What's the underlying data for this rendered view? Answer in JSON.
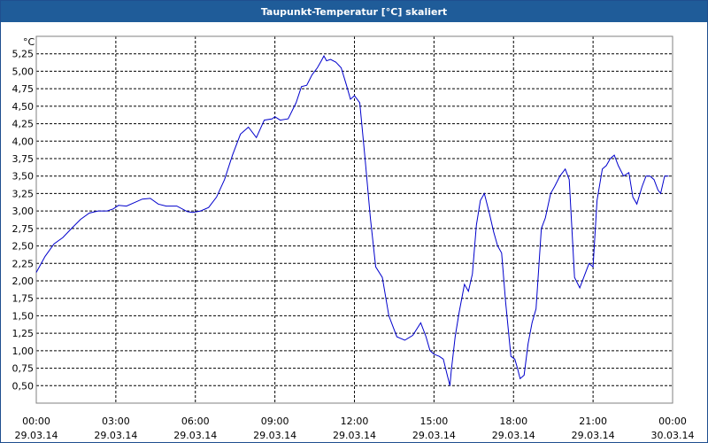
{
  "window": {
    "title": "Taupunkt-Temperatur [°C] skaliert"
  },
  "chart_data": {
    "type": "line",
    "title": "Taupunkt-Temperatur [°C] skaliert",
    "ylabel": "°C",
    "xlabel": "",
    "ylim": [
      0.25,
      5.5
    ],
    "xlim": [
      0,
      24
    ],
    "grid": true,
    "line_color": "#0000cc",
    "y_ticks": [
      {
        "value": 0.5,
        "label": "0,50"
      },
      {
        "value": 0.75,
        "label": "0,75"
      },
      {
        "value": 1.0,
        "label": "1,00"
      },
      {
        "value": 1.25,
        "label": "1,25"
      },
      {
        "value": 1.5,
        "label": "1,50"
      },
      {
        "value": 1.75,
        "label": "1,75"
      },
      {
        "value": 2.0,
        "label": "2,00"
      },
      {
        "value": 2.25,
        "label": "2,25"
      },
      {
        "value": 2.5,
        "label": "2,50"
      },
      {
        "value": 2.75,
        "label": "2,75"
      },
      {
        "value": 3.0,
        "label": "3,00"
      },
      {
        "value": 3.25,
        "label": "3,25"
      },
      {
        "value": 3.5,
        "label": "3,50"
      },
      {
        "value": 3.75,
        "label": "3,75"
      },
      {
        "value": 4.0,
        "label": "4,00"
      },
      {
        "value": 4.25,
        "label": "4,25"
      },
      {
        "value": 4.5,
        "label": "4,50"
      },
      {
        "value": 4.75,
        "label": "4,75"
      },
      {
        "value": 5.0,
        "label": "5,00"
      },
      {
        "value": 5.25,
        "label": "5,25"
      }
    ],
    "x_ticks": [
      {
        "value": 0,
        "time": "00:00",
        "date": "29.03.14"
      },
      {
        "value": 3,
        "time": "03:00",
        "date": "29.03.14"
      },
      {
        "value": 6,
        "time": "06:00",
        "date": "29.03.14"
      },
      {
        "value": 9,
        "time": "09:00",
        "date": "29.03.14"
      },
      {
        "value": 12,
        "time": "12:00",
        "date": "29.03.14"
      },
      {
        "value": 15,
        "time": "15:00",
        "date": "29.03.14"
      },
      {
        "value": 18,
        "time": "18:00",
        "date": "29.03.14"
      },
      {
        "value": 21,
        "time": "21:00",
        "date": "29.03.14"
      },
      {
        "value": 24,
        "time": "00:00",
        "date": "30.03.14"
      }
    ],
    "series": [
      {
        "x": [
          0.0,
          0.33,
          0.67,
          1.0,
          1.33,
          1.67,
          2.0,
          2.33,
          2.67,
          2.9,
          3.1,
          3.4,
          3.7,
          4.0,
          4.3,
          4.6,
          4.9,
          5.3,
          5.7,
          5.9,
          6.2,
          6.5,
          6.8,
          7.1,
          7.4,
          7.7,
          8.0,
          8.3,
          8.6,
          8.9,
          9.0,
          9.2,
          9.5,
          9.8,
          10.0,
          10.2,
          10.4,
          10.6,
          10.75,
          10.85,
          10.95,
          11.1,
          11.3,
          11.5,
          11.7,
          11.85,
          12.0,
          12.2,
          12.4,
          12.6,
          12.8,
          13.05,
          13.3,
          13.6,
          13.9,
          14.2,
          14.5,
          14.7,
          14.85,
          15.0,
          15.2,
          15.35,
          15.5,
          15.6,
          15.65,
          15.8,
          15.95,
          16.15,
          16.3,
          16.45,
          16.6,
          16.75,
          16.9,
          17.1,
          17.25,
          17.4,
          17.55,
          17.7,
          17.9,
          18.05,
          18.15,
          18.25,
          18.4,
          18.55,
          18.7,
          18.85,
          19.05,
          19.2,
          19.4,
          19.55,
          19.75,
          19.95,
          20.1,
          20.3,
          20.5,
          20.65,
          20.8,
          20.85,
          21.0,
          21.15,
          21.35,
          21.5,
          21.65,
          21.8,
          21.95,
          22.15,
          22.35,
          22.5,
          22.65,
          22.85,
          23.0,
          23.15,
          23.3,
          23.45,
          23.55,
          23.7,
          23.85
        ],
        "y": [
          2.12,
          2.35,
          2.53,
          2.62,
          2.75,
          2.88,
          2.97,
          3.0,
          3.0,
          3.03,
          3.08,
          3.07,
          3.12,
          3.17,
          3.18,
          3.1,
          3.07,
          3.07,
          2.99,
          2.98,
          3.0,
          3.05,
          3.2,
          3.45,
          3.8,
          4.1,
          4.2,
          4.05,
          4.3,
          4.32,
          4.35,
          4.3,
          4.32,
          4.55,
          4.78,
          4.8,
          4.95,
          5.05,
          5.15,
          5.22,
          5.15,
          5.17,
          5.13,
          5.05,
          4.8,
          4.6,
          4.65,
          4.55,
          3.75,
          2.9,
          2.2,
          2.05,
          1.5,
          1.2,
          1.15,
          1.22,
          1.4,
          1.2,
          1.0,
          0.95,
          0.92,
          0.88,
          0.65,
          0.5,
          0.7,
          1.2,
          1.55,
          1.95,
          1.85,
          2.1,
          2.8,
          3.15,
          3.25,
          2.95,
          2.7,
          2.5,
          2.4,
          1.7,
          0.92,
          0.88,
          0.75,
          0.6,
          0.65,
          1.1,
          1.4,
          1.6,
          2.75,
          2.9,
          3.25,
          3.35,
          3.5,
          3.6,
          3.45,
          2.05,
          1.9,
          2.05,
          2.2,
          2.25,
          2.2,
          3.15,
          3.6,
          3.65,
          3.75,
          3.8,
          3.65,
          3.5,
          3.55,
          3.2,
          3.1,
          3.35,
          3.5,
          3.5,
          3.45,
          3.3,
          3.25,
          3.5,
          3.5
        ]
      }
    ]
  }
}
